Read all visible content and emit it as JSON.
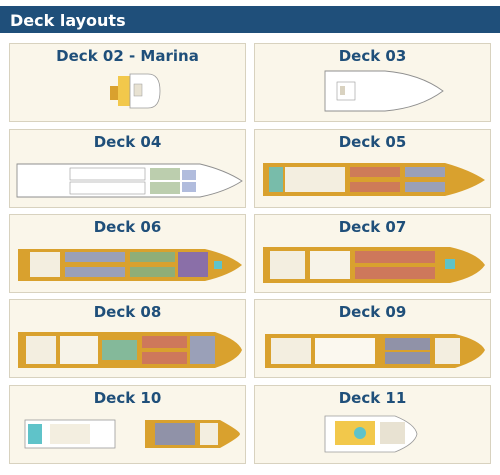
{
  "header": {
    "title": "Deck layouts"
  },
  "decks": [
    {
      "label": "Deck 02 - Marina"
    },
    {
      "label": "Deck 03"
    },
    {
      "label": "Deck 04"
    },
    {
      "label": "Deck 05"
    },
    {
      "label": "Deck 06"
    },
    {
      "label": "Deck 07"
    },
    {
      "label": "Deck 08"
    },
    {
      "label": "Deck 09"
    },
    {
      "label": "Deck 10"
    },
    {
      "label": "Deck 11"
    }
  ],
  "colors": {
    "header_bg": "#1f4f7a",
    "title_text": "#1f4f7a",
    "card_bg": "#faf6ea",
    "hull_gold": "#d9a12e",
    "cabin_red": "#c96b6b",
    "cabin_green": "#8fae78",
    "cabin_purple": "#8a6fa8",
    "cabin_blue": "#7d8fc7",
    "pool_teal": "#5fc3c9"
  }
}
